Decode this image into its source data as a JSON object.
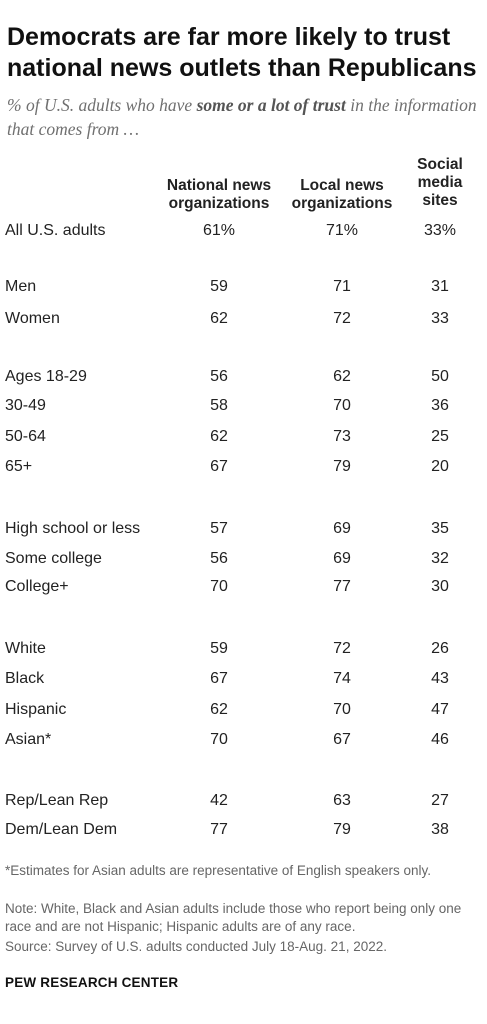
{
  "title": "Democrats are far more likely to trust national news outlets than Republicans",
  "subtitle_pre": "% of U.S. adults who have ",
  "subtitle_bold": "some or a lot of trust",
  "subtitle_post": " in the information that comes from …",
  "columns": [
    "National news organizations",
    "Local news organizations",
    "Social media sites"
  ],
  "chart_data": {
    "type": "table",
    "columns": [
      "National news organizations",
      "Local news organizations",
      "Social media sites"
    ],
    "rows": [
      {
        "label": "All U.S. adults",
        "values": [
          "61%",
          "71%",
          "33%"
        ]
      },
      {
        "label": "Men",
        "values": [
          "59",
          "71",
          "31"
        ]
      },
      {
        "label": "Women",
        "values": [
          "62",
          "72",
          "33"
        ]
      },
      {
        "label": "Ages 18-29",
        "values": [
          "56",
          "62",
          "50"
        ]
      },
      {
        "label": "30-49",
        "values": [
          "58",
          "70",
          "36"
        ]
      },
      {
        "label": "50-64",
        "values": [
          "62",
          "73",
          "25"
        ]
      },
      {
        "label": "65+",
        "values": [
          "67",
          "79",
          "20"
        ]
      },
      {
        "label": "High school or less",
        "values": [
          "57",
          "69",
          "35"
        ]
      },
      {
        "label": "Some college",
        "values": [
          "56",
          "69",
          "32"
        ]
      },
      {
        "label": "College+",
        "values": [
          "70",
          "77",
          "30"
        ]
      },
      {
        "label": "White",
        "values": [
          "59",
          "72",
          "26"
        ]
      },
      {
        "label": "Black",
        "values": [
          "67",
          "74",
          "43"
        ]
      },
      {
        "label": "Hispanic",
        "values": [
          "62",
          "70",
          "47"
        ]
      },
      {
        "label": "Asian*",
        "values": [
          "70",
          "67",
          "46"
        ]
      },
      {
        "label": "Rep/Lean Rep",
        "values": [
          "42",
          "63",
          "27"
        ]
      },
      {
        "label": "Dem/Lean Dem",
        "values": [
          "77",
          "79",
          "38"
        ]
      }
    ]
  },
  "footnote": "*Estimates for Asian adults are representative of English speakers only.",
  "note": "Note: White, Black and Asian adults include those who report being only one race and are not Hispanic; Hispanic adults are of any race.",
  "source": "Source: Survey of U.S. adults conducted July 18-Aug. 21, 2022.",
  "org": "PEW RESEARCH CENTER"
}
